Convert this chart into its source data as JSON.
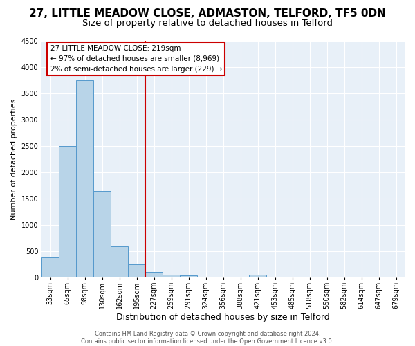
{
  "title": "27, LITTLE MEADOW CLOSE, ADMASTON, TELFORD, TF5 0DN",
  "subtitle": "Size of property relative to detached houses in Telford",
  "xlabel": "Distribution of detached houses by size in Telford",
  "ylabel": "Number of detached properties",
  "bin_labels": [
    "33sqm",
    "65sqm",
    "98sqm",
    "130sqm",
    "162sqm",
    "195sqm",
    "227sqm",
    "259sqm",
    "291sqm",
    "324sqm",
    "356sqm",
    "388sqm",
    "421sqm",
    "453sqm",
    "485sqm",
    "518sqm",
    "550sqm",
    "582sqm",
    "614sqm",
    "647sqm",
    "679sqm"
  ],
  "bin_values": [
    380,
    2500,
    3750,
    1650,
    590,
    250,
    110,
    55,
    40,
    0,
    0,
    0,
    55,
    0,
    0,
    0,
    0,
    0,
    0,
    0,
    0
  ],
  "bar_color": "#b8d4e8",
  "bar_edgecolor": "#5599cc",
  "vline_x_index": 6.0,
  "vline_color": "#cc0000",
  "annotation_line1": "27 LITTLE MEADOW CLOSE: 219sqm",
  "annotation_line2": "← 97% of detached houses are smaller (8,969)",
  "annotation_line3": "2% of semi-detached houses are larger (229) →",
  "annotation_box_color": "white",
  "annotation_box_edgecolor": "#cc0000",
  "ylim": [
    0,
    4500
  ],
  "yticks": [
    0,
    500,
    1000,
    1500,
    2000,
    2500,
    3000,
    3500,
    4000,
    4500
  ],
  "bg_color": "#e8f0f8",
  "footer_text": "Contains HM Land Registry data © Crown copyright and database right 2024.\nContains public sector information licensed under the Open Government Licence v3.0.",
  "title_fontsize": 11,
  "subtitle_fontsize": 9.5,
  "xlabel_fontsize": 9,
  "ylabel_fontsize": 8,
  "tick_fontsize": 7,
  "annotation_fontsize": 7.5,
  "footer_fontsize": 6
}
